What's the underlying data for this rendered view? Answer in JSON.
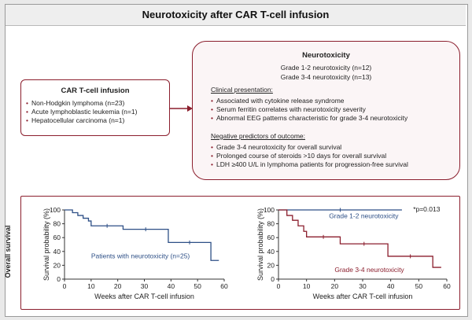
{
  "title": "Neurotoxicity after CAR T-cell infusion",
  "infusion": {
    "heading": "CAR T-cell infusion",
    "items": [
      "Non-Hodgkin lymphoma (n=23)",
      "Acute lymphoblastic leukemia (n=1)",
      "Hepatocellular carcinoma (n=1)"
    ]
  },
  "neurotoxicity": {
    "heading": "Neurotoxicity",
    "grades": [
      "Grade 1-2 neurotoxicity (n=12)",
      "Grade 3-4 neurotoxicity (n=13)"
    ],
    "clinical_heading": "Clinical presentation:",
    "clinical_items": [
      "Associated with cytokine release syndrome",
      "Serum ferritin correlates with neurotoxicity severity",
      "Abnormal EEG patterns characteristic for grade 3-4 neurotoxicity"
    ],
    "negative_heading": "Negative predictors of outcome:",
    "negative_items": [
      "Grade 3-4 neurotoxicity for overall survival",
      "Prolonged course of steroids >10 days for overall survival",
      "LDH ≥400 U/L in lymphoma patients for progression-free survival"
    ]
  },
  "side_label": "Overall survival",
  "accent_color": "#8b1e2d",
  "chart_data": [
    {
      "type": "line",
      "xlabel": "Weeks after CAR T-cell infusion",
      "ylabel": "Survival probability (%)",
      "xlim": [
        0,
        60
      ],
      "ylim": [
        0,
        100
      ],
      "xticks": [
        0,
        10,
        20,
        30,
        40,
        50,
        60
      ],
      "yticks": [
        0,
        20,
        40,
        60,
        80,
        100
      ],
      "step": true,
      "series": [
        {
          "name": "Patients with neurotoxicity (n=25)",
          "color": "#2d4f86",
          "x": [
            0,
            3,
            5,
            7,
            9,
            10,
            22,
            39,
            55,
            58
          ],
          "y": [
            100,
            96,
            92,
            88,
            84,
            77,
            72,
            53,
            27,
            27
          ]
        }
      ]
    },
    {
      "type": "line",
      "xlabel": "Weeks after CAR T-cell infusion",
      "ylabel": "Survival probability (%)",
      "xlim": [
        0,
        60
      ],
      "ylim": [
        0,
        100
      ],
      "xticks": [
        0,
        10,
        20,
        30,
        40,
        50,
        60
      ],
      "yticks": [
        0,
        20,
        40,
        60,
        80,
        100
      ],
      "step": true,
      "annotation": "*p=0.013",
      "series": [
        {
          "name": "Grade 1-2 neurotoxicity",
          "color": "#2d4f86",
          "x": [
            0,
            44
          ],
          "y": [
            100,
            100
          ]
        },
        {
          "name": "Grade 3-4 neurotoxicity",
          "color": "#8b1e2d",
          "x": [
            0,
            3,
            5,
            7,
            9,
            10,
            22,
            39,
            55,
            58
          ],
          "y": [
            100,
            92,
            85,
            77,
            69,
            61,
            51,
            33,
            17,
            17
          ]
        }
      ]
    }
  ]
}
